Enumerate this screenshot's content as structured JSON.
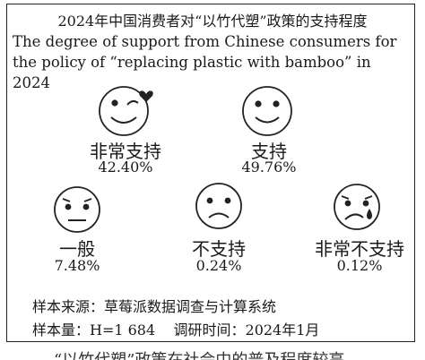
{
  "chart_data": {
    "type": "pictograph",
    "title": "2024年中国消费者对“以竹代塑”政策的支持程度",
    "subtitle": "The degree of support from Chinese consumers for the policy of  “replacing plastic with bamboo” in 2024",
    "categories": [
      "非常支持",
      "支持",
      "一般",
      "不支持",
      "非常不支持"
    ],
    "values": [
      42.4,
      49.76,
      7.48,
      0.24,
      0.12
    ],
    "value_labels": [
      "42.40%",
      "49.76%",
      "7.48%",
      "0.24%",
      "0.12%"
    ],
    "icons": [
      "wink-heart-face-icon",
      "smile-face-icon",
      "neutral-face-icon",
      "frown-face-icon",
      "crying-face-icon"
    ]
  },
  "footer": {
    "source": "样本来源：草莓派数据调查与计算系统",
    "sample": "样本量：H=1 684    调研时间：2024年1月"
  },
  "below_text": "“以竹代塑”政策在社会中的普及程度较高"
}
